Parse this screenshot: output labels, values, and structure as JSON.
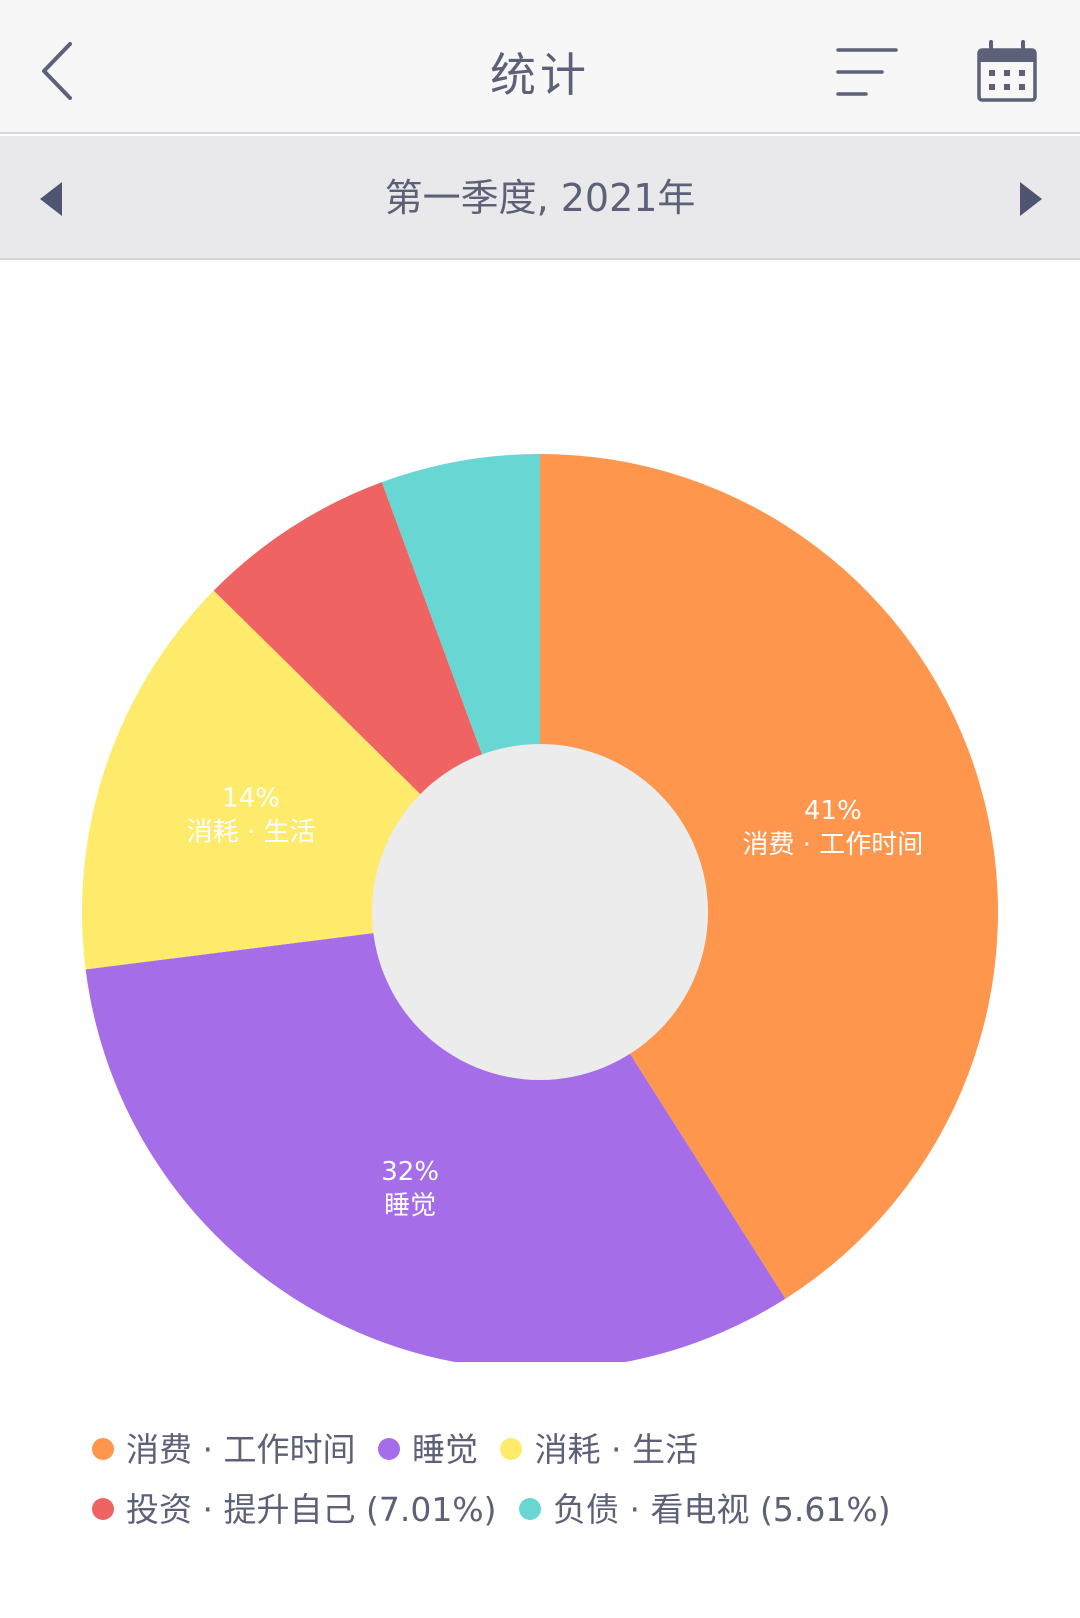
{
  "header": {
    "title": "统计",
    "back_icon": "chevron-left-icon",
    "menu_icon": "list-filter-icon",
    "calendar_icon": "calendar-icon"
  },
  "period": {
    "label": "第一季度, 2021年",
    "prev_icon": "triangle-left-icon",
    "next_icon": "triangle-right-icon"
  },
  "colors": {
    "accent_text": "#5d6177",
    "center_hole": "#ececec"
  },
  "chart_data": {
    "type": "pie",
    "donut": true,
    "title": "",
    "slices": [
      {
        "name": "消费 · 工作时间",
        "value": 41.0,
        "percent_label": "41%",
        "color": "#fe964d",
        "show_label": true
      },
      {
        "name": "睡觉",
        "value": 32.0,
        "percent_label": "32%",
        "color": "#a66de8",
        "show_label": true
      },
      {
        "name": "消耗 · 生活",
        "value": 14.38,
        "percent_label": "14%",
        "color": "#ffeb6b",
        "show_label": true
      },
      {
        "name": "投资 · 提升自己",
        "value": 7.01,
        "percent_label": "7.01%",
        "color": "#f06363",
        "show_label": false
      },
      {
        "name": "负债 · 看电视",
        "value": 5.61,
        "percent_label": "5.61%",
        "color": "#68d6d3",
        "show_label": false
      }
    ],
    "legend": {
      "placement": "bottom",
      "rows": [
        [
          {
            "text": "消费 · 工作时间",
            "color": "#fe964d"
          },
          {
            "text": "睡觉",
            "color": "#a66de8"
          },
          {
            "text": "消耗 · 生活",
            "color": "#ffeb6b"
          }
        ],
        [
          {
            "text": "投资 · 提升自己 (7.01%)",
            "color": "#f06363"
          },
          {
            "text": "负债 · 看电视 (5.61%)",
            "color": "#68d6d3"
          }
        ]
      ]
    }
  }
}
